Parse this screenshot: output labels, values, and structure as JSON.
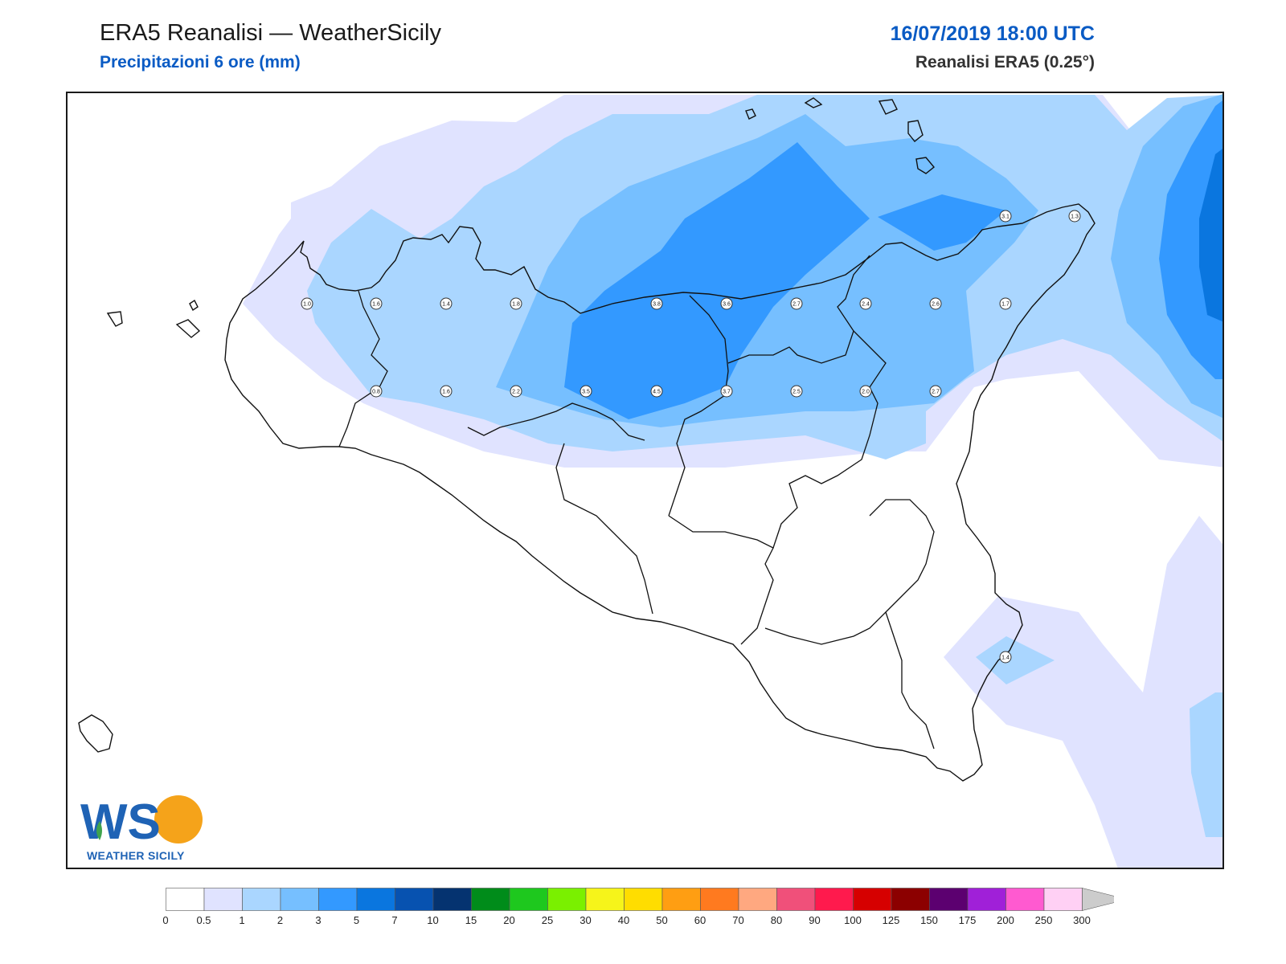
{
  "header": {
    "title": "ERA5 Reanalisi — WeatherSicily",
    "subtitle": "Precipitazioni 6 ore (mm)",
    "datetime": "16/07/2019 18:00 UTC",
    "source": "Reanalisi ERA5 (0.25°)"
  },
  "logo": {
    "text": "WEATHER SICILY",
    "letters": "WS"
  },
  "station_values": [
    "1.0",
    "1.6",
    "1.4",
    "1.8",
    "3.8",
    "3.6",
    "2.7",
    "2.4",
    "2.6",
    "1.7",
    "0.8",
    "1.6",
    "2.2",
    "3.5",
    "4.5",
    "3.7",
    "2.5",
    "2.0",
    "2.7",
    "3.1",
    "1.3",
    "1.4"
  ],
  "colorbar": {
    "ticks": [
      "0",
      "0.5",
      "1",
      "2",
      "3",
      "5",
      "7",
      "10",
      "15",
      "20",
      "25",
      "30",
      "40",
      "50",
      "60",
      "70",
      "80",
      "90",
      "100",
      "125",
      "150",
      "175",
      "200",
      "250",
      "300"
    ],
    "colors": [
      "#ffffff",
      "#e0e3ff",
      "#aad6ff",
      "#76bfff",
      "#3399ff",
      "#0a76df",
      "#0752b0",
      "#053370",
      "#008c1a",
      "#1ec81e",
      "#7af000",
      "#f6f41a",
      "#ffdd00",
      "#ff9e12",
      "#ff7a1f",
      "#ffa880",
      "#f0507a",
      "#ff1a4d",
      "#d60000",
      "#8c0000",
      "#5c0070",
      "#a020d8",
      "#ff5ad0",
      "#ffd0f4"
    ],
    "extend_color": "#cccccc"
  }
}
